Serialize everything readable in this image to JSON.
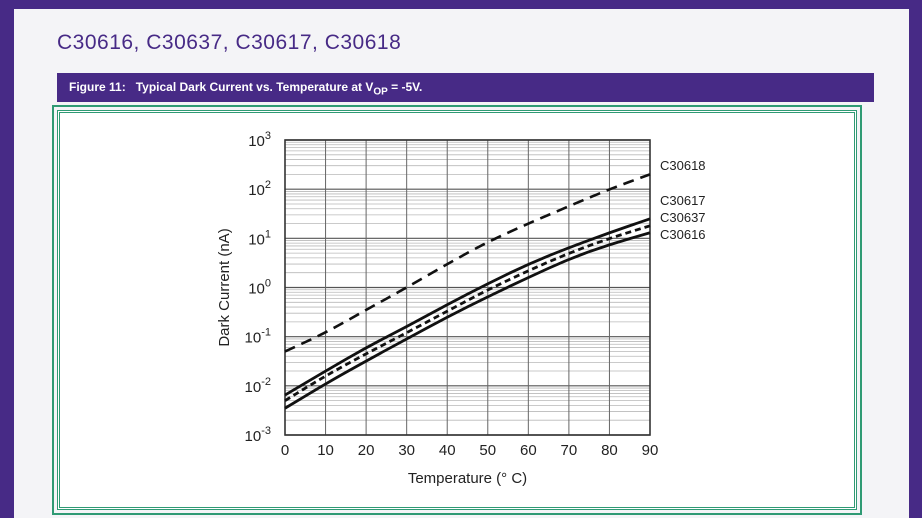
{
  "page": {
    "title": "C30616, C30637, C30617, C30618",
    "colors": {
      "frame": "#472a86",
      "caption_bg": "#472a86",
      "caption_fg": "#ffffff",
      "chart_border": "#2f9a74"
    }
  },
  "caption": {
    "prefix": "Figure 11:",
    "text": "Typical Dark Current vs. Temperature at V",
    "sub": "OP",
    "suffix": " = -5V."
  },
  "chart_data": {
    "type": "line",
    "title": "",
    "xlabel": "Temperature (° C)",
    "ylabel": "Dark Current (nA)",
    "xlim": [
      0,
      90
    ],
    "ylim": [
      0.001,
      1000
    ],
    "yscale": "log",
    "grid": true,
    "legend": "direct labels at right end of each curve",
    "x_ticks": [
      "0",
      "10",
      "20",
      "30",
      "40",
      "50",
      "60",
      "70",
      "80",
      "90"
    ],
    "y_ticks": [
      {
        "base": "10",
        "exp": "-3"
      },
      {
        "base": "10",
        "exp": "-2"
      },
      {
        "base": "10",
        "exp": "-1"
      },
      {
        "base": "10",
        "exp": "0"
      },
      {
        "base": "10",
        "exp": "1"
      },
      {
        "base": "10",
        "exp": "2"
      },
      {
        "base": "10",
        "exp": "3"
      }
    ],
    "x": [
      0,
      10,
      20,
      30,
      40,
      50,
      60,
      70,
      80,
      90
    ],
    "series": [
      {
        "name": "C30618",
        "style": "long-dash",
        "values": [
          0.05,
          0.12,
          0.35,
          1.0,
          3.0,
          8.5,
          20,
          45,
          100,
          200
        ]
      },
      {
        "name": "C30617",
        "style": "solid",
        "values": [
          0.0065,
          0.02,
          0.06,
          0.16,
          0.45,
          1.2,
          3.0,
          6.5,
          13,
          25
        ]
      },
      {
        "name": "C30637",
        "style": "short-dash",
        "values": [
          0.005,
          0.016,
          0.045,
          0.12,
          0.33,
          0.9,
          2.2,
          5.0,
          10,
          18
        ]
      },
      {
        "name": "C30616",
        "style": "solid",
        "values": [
          0.0035,
          0.011,
          0.032,
          0.09,
          0.25,
          0.65,
          1.6,
          3.8,
          7.5,
          13
        ]
      }
    ]
  }
}
